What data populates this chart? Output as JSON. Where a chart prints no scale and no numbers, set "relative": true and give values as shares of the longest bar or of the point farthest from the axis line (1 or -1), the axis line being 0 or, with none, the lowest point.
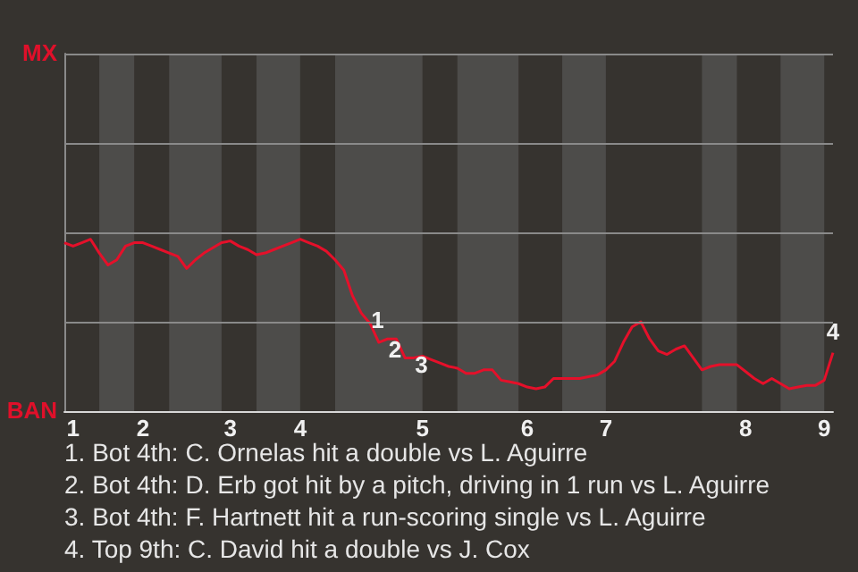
{
  "chart_data": {
    "type": "line",
    "categories": [
      null,
      "1",
      null,
      null,
      null,
      null,
      null,
      null,
      null,
      "2",
      null,
      null,
      null,
      null,
      null,
      null,
      null,
      null,
      null,
      "3",
      null,
      null,
      null,
      null,
      null,
      null,
      null,
      "4",
      null,
      null,
      null,
      null,
      null,
      null,
      null,
      null,
      null,
      null,
      null,
      null,
      null,
      "5",
      null,
      null,
      null,
      null,
      null,
      null,
      null,
      null,
      null,
      null,
      null,
      "6",
      null,
      null,
      null,
      null,
      null,
      null,
      null,
      null,
      "7",
      null,
      null,
      null,
      null,
      null,
      null,
      null,
      null,
      null,
      null,
      null,
      null,
      null,
      null,
      null,
      "8",
      null,
      null,
      null,
      null,
      null,
      null,
      null,
      null,
      "9",
      null
    ],
    "series": [
      {
        "color": "#e5102a",
        "values": [
          0.98,
          0.96,
          0.98,
          1,
          0.92,
          0.85,
          0.88,
          0.96,
          0.98,
          0.98,
          0.96,
          0.94,
          0.92,
          0.9,
          0.83,
          0.88,
          0.92,
          0.95,
          0.98,
          0.99,
          0.96,
          0.94,
          0.91,
          0.92,
          0.94,
          0.96,
          0.98,
          1,
          0.98,
          0.96,
          0.93,
          0.88,
          0.82,
          0.67,
          0.57,
          0.51,
          0.4,
          0.42,
          0.42,
          0.31,
          0.31,
          0.32,
          0.3,
          0.28,
          0.26,
          0.25,
          0.22,
          0.22,
          0.24,
          0.24,
          0.18,
          0.17,
          0.16,
          0.14,
          0.13,
          0.14,
          0.19,
          0.19,
          0.19,
          0.19,
          0.2,
          0.21,
          0.24,
          0.29,
          0.4,
          0.49,
          0.52,
          0.42,
          0.35,
          0.33,
          0.36,
          0.38,
          0.31,
          0.24,
          0.26,
          0.27,
          0.27,
          0.27,
          0.23,
          0.19,
          0.16,
          0.19,
          0.16,
          0.13,
          0.14,
          0.15,
          0.15,
          0.18,
          0.34
        ]
      }
    ],
    "relative": true,
    "ref_lines": [
      {
        "axis": "y",
        "value": 0.52,
        "color": "#8a8a8a",
        "line_style": "solid"
      },
      {
        "axis": "y",
        "value": 1.04,
        "color": "#8a8a8a",
        "line_style": "solid"
      },
      {
        "axis": "y",
        "value": 1.56,
        "color": "#8a8a8a",
        "line_style": "solid"
      },
      {
        "axis": "y",
        "value": 2.08,
        "color": "#8a8a8a",
        "line_style": "solid"
      }
    ],
    "marker": "none",
    "annotations": [
      "MX",
      "BAN",
      "1",
      "2",
      "3",
      "4",
      "1. Bot 4th: C. Ornelas hit a double vs L. Aguirre",
      "2. Bot 4th: D. Erb got hit by a pitch, driving in 1 run vs L. Aguirre",
      "3. Bot 4th: F. Hartnett hit a run-scoring single vs L. Aguirre",
      "4. Top 9th: C. David hit a double vs J. Cox"
    ]
  }
}
